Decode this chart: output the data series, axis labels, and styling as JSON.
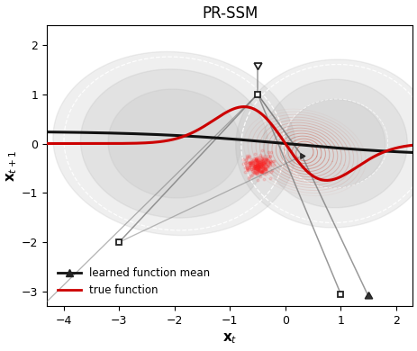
{
  "title": "PR-SSM",
  "xlabel": "$\\mathbf{x}_t$",
  "ylabel": "$\\mathbf{x}_{t+1}$",
  "xlim": [
    -4.3,
    2.3
  ],
  "ylim": [
    -3.3,
    2.4
  ],
  "true_func_color": "#cc0000",
  "learned_mean_color": "#111111",
  "gp_sample_color": "#777777",
  "contour_color": "#cc5544",
  "legend_entries": [
    "learned function mean",
    "true function"
  ],
  "xticks": [
    -4,
    -3,
    -2,
    -1,
    0,
    1,
    2
  ],
  "yticks": [
    -3,
    -2,
    -1,
    0,
    1,
    2
  ],
  "bg_gray": "#aaaaaa",
  "bg_alpha": 0.35
}
